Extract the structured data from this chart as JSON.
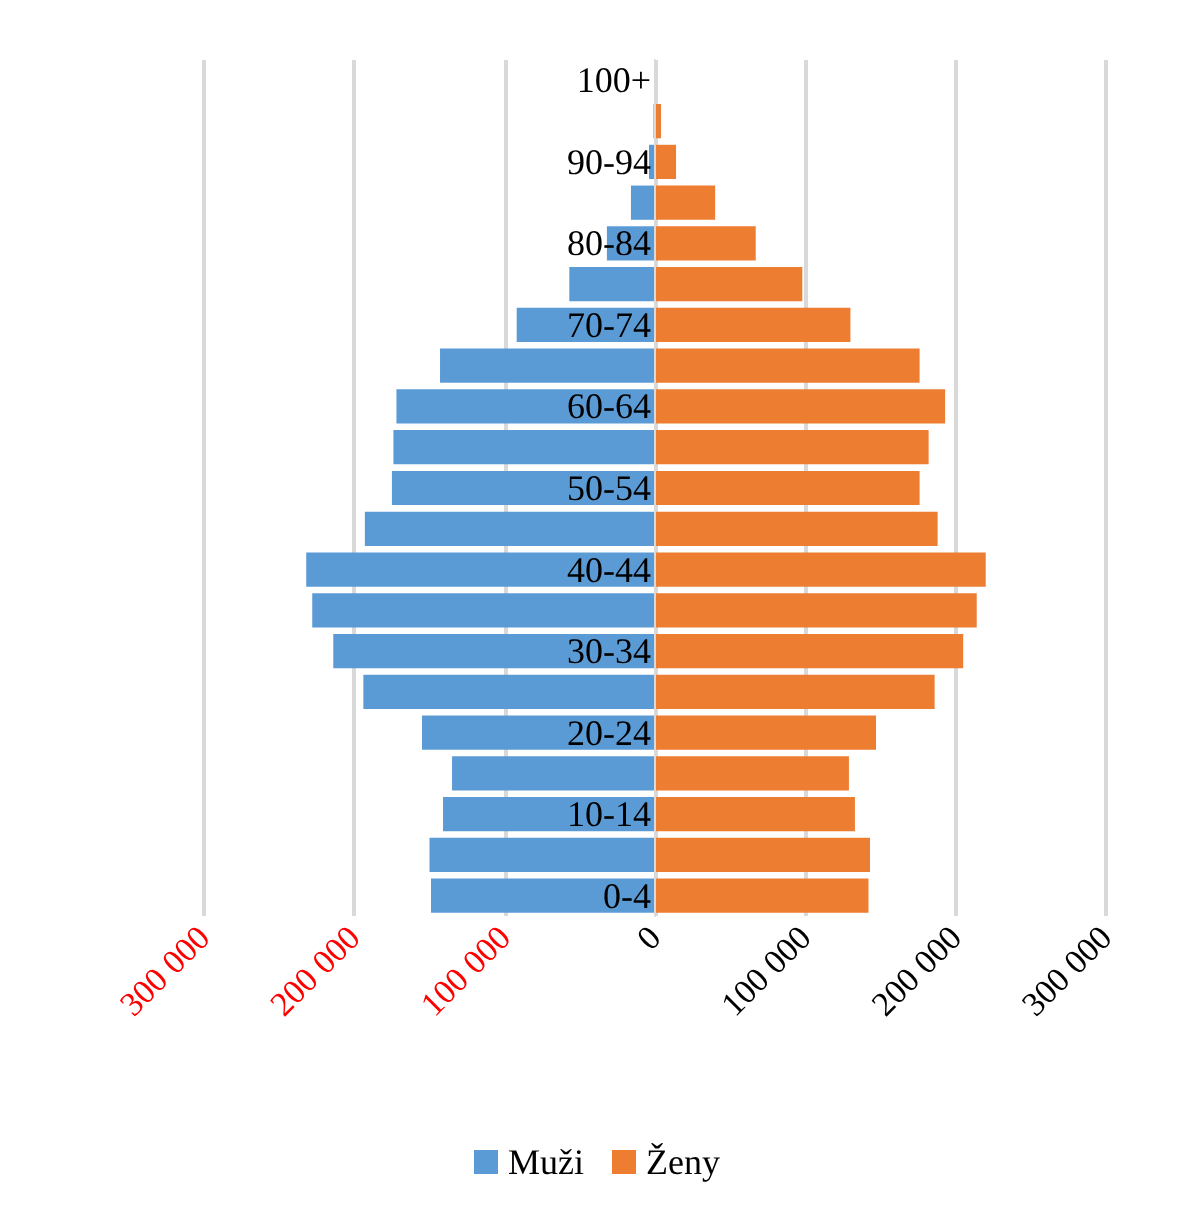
{
  "chart_data": {
    "type": "bar",
    "orientation": "horizontal",
    "categories": [
      "100+",
      null,
      "90-94",
      null,
      "80-84",
      null,
      "70-74",
      null,
      "60-64",
      null,
      "50-54",
      null,
      "40-44",
      null,
      "30-34",
      null,
      "20-24",
      null,
      "10-14",
      null,
      "0-4"
    ],
    "series": [
      {
        "name": "Muži",
        "color": "#5b9bd5",
        "values": [
          0,
          -1000,
          -4000,
          -16000,
          -32000,
          -57000,
          -92000,
          -143000,
          -172000,
          -174000,
          -175000,
          -193000,
          -232000,
          -228000,
          -214000,
          -194000,
          -155000,
          -135000,
          -141000,
          -150000,
          -149000
        ]
      },
      {
        "name": "Ženy",
        "color": "#ed7d31",
        "values": [
          0,
          4000,
          14000,
          40000,
          67000,
          98000,
          130000,
          176000,
          193000,
          182000,
          176000,
          188000,
          220000,
          214000,
          205000,
          186000,
          147000,
          129000,
          133000,
          143000,
          142000
        ]
      }
    ],
    "xlim": [
      -300000,
      300000
    ],
    "xticks": [
      {
        "value": -300000,
        "label": "300 000"
      },
      {
        "value": -200000,
        "label": "200 000"
      },
      {
        "value": -100000,
        "label": "100 000"
      },
      0,
      {
        "value": 100000,
        "label": "100 000"
      },
      {
        "value": 200000,
        "label": "200 000"
      },
      {
        "value": 300000,
        "label": "300 000"
      }
    ],
    "grid": "x",
    "legend": "bottom",
    "stacked": true
  }
}
